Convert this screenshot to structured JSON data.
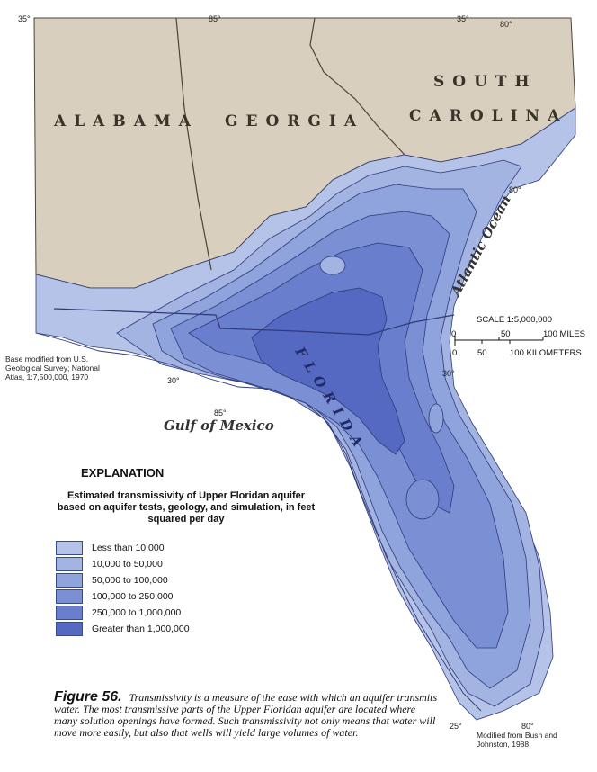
{
  "map": {
    "states": {
      "alabama": "ALABAMA",
      "georgia": "GEORGIA",
      "south": "SOUTH",
      "carolina": "CAROLINA",
      "florida": "FLORIDA"
    },
    "water": {
      "gulf": "Gulf of Mexico",
      "atlantic": "Atlantic Ocean"
    },
    "coordinates": {
      "lat35_left": "35°",
      "lon85_top": "85°",
      "lat35_right": "35°",
      "lon80_top": "80°",
      "lon80_right": "80°",
      "lat30_left": "30°",
      "lon85_bottom": "85°",
      "lat30_right": "30°",
      "lat25": "25°",
      "lon80_bottom": "80°"
    },
    "scale": {
      "title": "SCALE 1:5,000,000",
      "miles_ticks": [
        "0",
        "50",
        "100 MILES"
      ],
      "km_ticks": [
        "0",
        "50",
        "100 KILOMETERS"
      ]
    },
    "colors": {
      "land": "#d9cfbf",
      "lt10k": "#b4c3e7",
      "10k_50k": "#a3b4e3",
      "50k_100k": "#8fa3dc",
      "100k_250k": "#7b90d4",
      "250k_1m": "#6a7ece",
      "gt1m": "#5568c2",
      "border": "#4a4538",
      "contour": "#2f3a78"
    }
  },
  "explanation": {
    "title": "EXPLANATION",
    "description": "Estimated transmissivity of Upper Floridan aquifer based on aquifer tests, geology, and simulation, in feet squared per day",
    "legend": [
      {
        "label": "Less than 10,000",
        "color": "#b4c3e7"
      },
      {
        "label": "10,000 to 50,000",
        "color": "#a3b4e3"
      },
      {
        "label": "50,000 to 100,000",
        "color": "#8fa3dc"
      },
      {
        "label": "100,000 to 250,000",
        "color": "#7b90d4"
      },
      {
        "label": "250,000 to 1,000,000",
        "color": "#6a7ece"
      },
      {
        "label": "Greater than 1,000,000",
        "color": "#5568c2"
      }
    ]
  },
  "credits": {
    "left": "Base modified from U.S. Geological Survey; National Atlas, 1:7,500,000, 1970",
    "right": "Modified from Bush and Johnston, 1988"
  },
  "caption": {
    "number": "Figure 56.",
    "text": "Transmissivity is a measure of the ease with which an aquifer transmits water. The most transmissive parts of the Upper Floridan aquifer are located where many solution openings have formed. Such transmissivity not only means that water will move more easily, but also that wells will yield large volumes of water."
  }
}
